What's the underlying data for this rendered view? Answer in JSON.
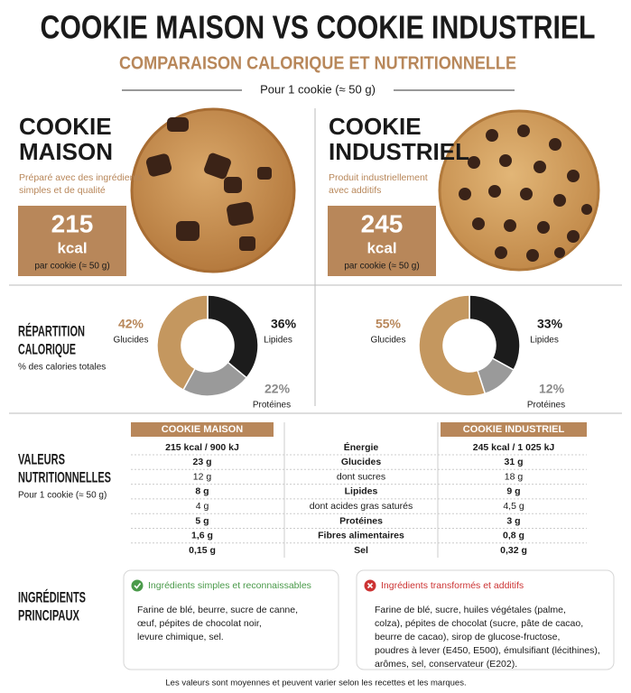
{
  "header": {
    "title": "COOKIE MAISON VS COOKIE INDUSTRIEL",
    "subtitle": "COMPARAISON CALORIQUE ET NUTRITIONNELLE",
    "basis": "Pour 1 cookie (≈ 50 g)"
  },
  "cookies": [
    {
      "name_lines": [
        "COOKIE",
        "MAISON"
      ],
      "description_lines": [
        "Préparé avec des ingrédients",
        "simples et de qualité"
      ],
      "calories": 215,
      "unit": "kcal",
      "per": "par cookie (≈ 50 g)"
    },
    {
      "name_lines": [
        "COOKIE",
        "INDUSTRIEL"
      ],
      "description_lines": [
        "Produit industriellement",
        "avec additifs"
      ],
      "calories": 245,
      "unit": "kcal",
      "per": "par cookie (≈ 50 g)"
    }
  ],
  "breakdown": {
    "title_lines": [
      "RÉPARTITION",
      "CALORIQUE"
    ],
    "note": "% des calories totales"
  },
  "chart_data": [
    {
      "type": "donut",
      "categories": [
        "Glucides",
        "Lipides",
        "Protéines"
      ],
      "values": [
        42,
        36,
        22
      ],
      "value_labels": [
        "42%",
        "36%",
        "22%"
      ],
      "colors": [
        "#c4975f",
        "#1c1c1c",
        "#9a9a9a"
      ]
    },
    {
      "type": "donut",
      "categories": [
        "Glucides",
        "Lipides",
        "Protéines"
      ],
      "values": [
        55,
        33,
        12
      ],
      "value_labels": [
        "55%",
        "33%",
        "12%"
      ],
      "colors": [
        "#c4975f",
        "#1c1c1c",
        "#9a9a9a"
      ]
    }
  ],
  "nutrition": {
    "title_lines": [
      "VALEURS",
      "NUTRITIONNELLES"
    ],
    "note": "Pour 1 cookie (≈ 50 g)",
    "headers": [
      "COOKIE MAISON",
      "COOKIE INDUSTRIEL"
    ],
    "rows": [
      [
        "215 kcal / 900 kJ",
        "Énergie",
        "245 kcal / 1 025 kJ"
      ],
      [
        "23 g",
        "Glucides",
        "31 g"
      ],
      [
        "12 g",
        "dont sucres",
        "18 g"
      ],
      [
        "8 g",
        "Lipides",
        "9 g"
      ],
      [
        "4 g",
        "dont acides gras saturés",
        "4,5 g"
      ],
      [
        "5 g",
        "Protéines",
        "3 g"
      ],
      [
        "1,6 g",
        "Fibres alimentaires",
        "0,8 g"
      ],
      [
        "0,15 g",
        "Sel",
        "0,32 g"
      ]
    ]
  },
  "ingredients": {
    "title_lines": [
      "INGRÉDIENTS",
      "PRINCIPAUX"
    ],
    "boxes": [
      {
        "heading": "Ingrédients simples et reconnaissables",
        "lines": [
          "Farine de blé, beurre, sucre de canne,",
          "œuf, pépites de chocolat noir,",
          "levure chimique, sel."
        ]
      },
      {
        "heading": "Ingrédients transformés et additifs",
        "lines": [
          "Farine de blé, sucre, huiles végétales (palme,",
          "colza), pépites de chocolat (sucre, pâte de cacao,",
          "beurre de cacao), sirop de glucose-fructose,",
          "poudres à lever (E450, E500), émulsifiant (lécithines),",
          "arômes, sel, conservateur (E202)."
        ]
      }
    ]
  },
  "footer": "Les valeurs sont moyennes et peuvent varier selon les recettes et les marques."
}
